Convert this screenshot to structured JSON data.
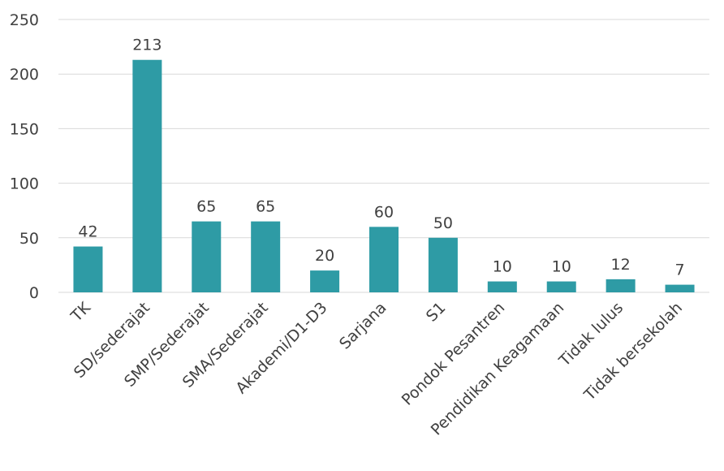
{
  "chart_data": {
    "type": "bar",
    "title": "",
    "xlabel": "",
    "ylabel": "",
    "categories": [
      "TK",
      "SD/sederajat",
      "SMP/Sederajat",
      "SMA/Sederajat",
      "Akademi/D1-D3",
      "Sarjana",
      "S1",
      "Pondok Pesantren",
      "Pendidikan Keagamaan",
      "Tidak lulus",
      "Tidak bersekolah"
    ],
    "values": [
      42,
      213,
      65,
      65,
      20,
      60,
      50,
      10,
      10,
      12,
      7
    ],
    "ylim": [
      0,
      250
    ],
    "yticks": [
      0,
      50,
      100,
      150,
      200,
      250
    ],
    "grid": true,
    "legend": "none",
    "bar_color": "#2e9ba5"
  }
}
